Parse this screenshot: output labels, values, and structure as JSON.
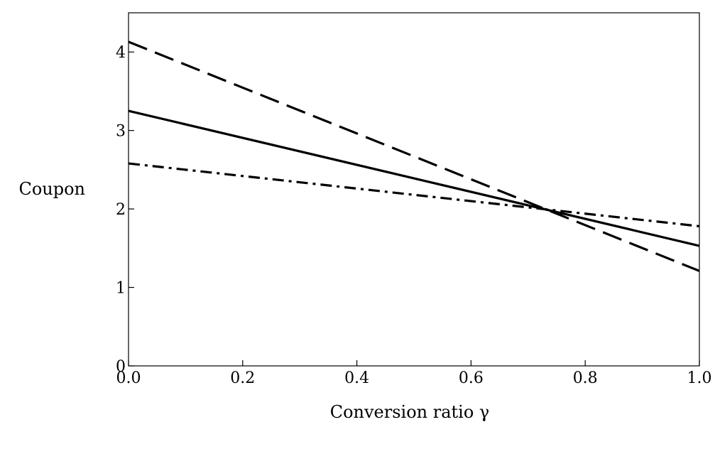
{
  "chart_data": {
    "type": "line",
    "title": "",
    "xlabel": "Conversion ratio γ",
    "ylabel": "Coupon",
    "xlim": [
      0,
      1
    ],
    "ylim": [
      0,
      4.5
    ],
    "xticks": [
      0,
      0.2,
      0.4,
      0.6,
      0.8,
      1.0
    ],
    "xtick_labels": [
      "0.0",
      "0.2",
      "0.4",
      "0.6",
      "0.8",
      "1.0"
    ],
    "yticks": [
      0,
      1,
      2,
      3,
      4
    ],
    "ytick_labels": [
      "0",
      "1",
      "2",
      "3",
      "4"
    ],
    "grid": false,
    "legend": "none",
    "series": [
      {
        "style": "solid",
        "color": "#000000",
        "x": [
          0,
          1
        ],
        "y": [
          3.25,
          1.53
        ]
      },
      {
        "style": "dashed",
        "color": "#000000",
        "x": [
          0,
          1
        ],
        "y": [
          4.13,
          1.21
        ]
      },
      {
        "style": "dashdot",
        "color": "#000000",
        "x": [
          0,
          1
        ],
        "y": [
          2.58,
          1.78
        ]
      }
    ]
  }
}
